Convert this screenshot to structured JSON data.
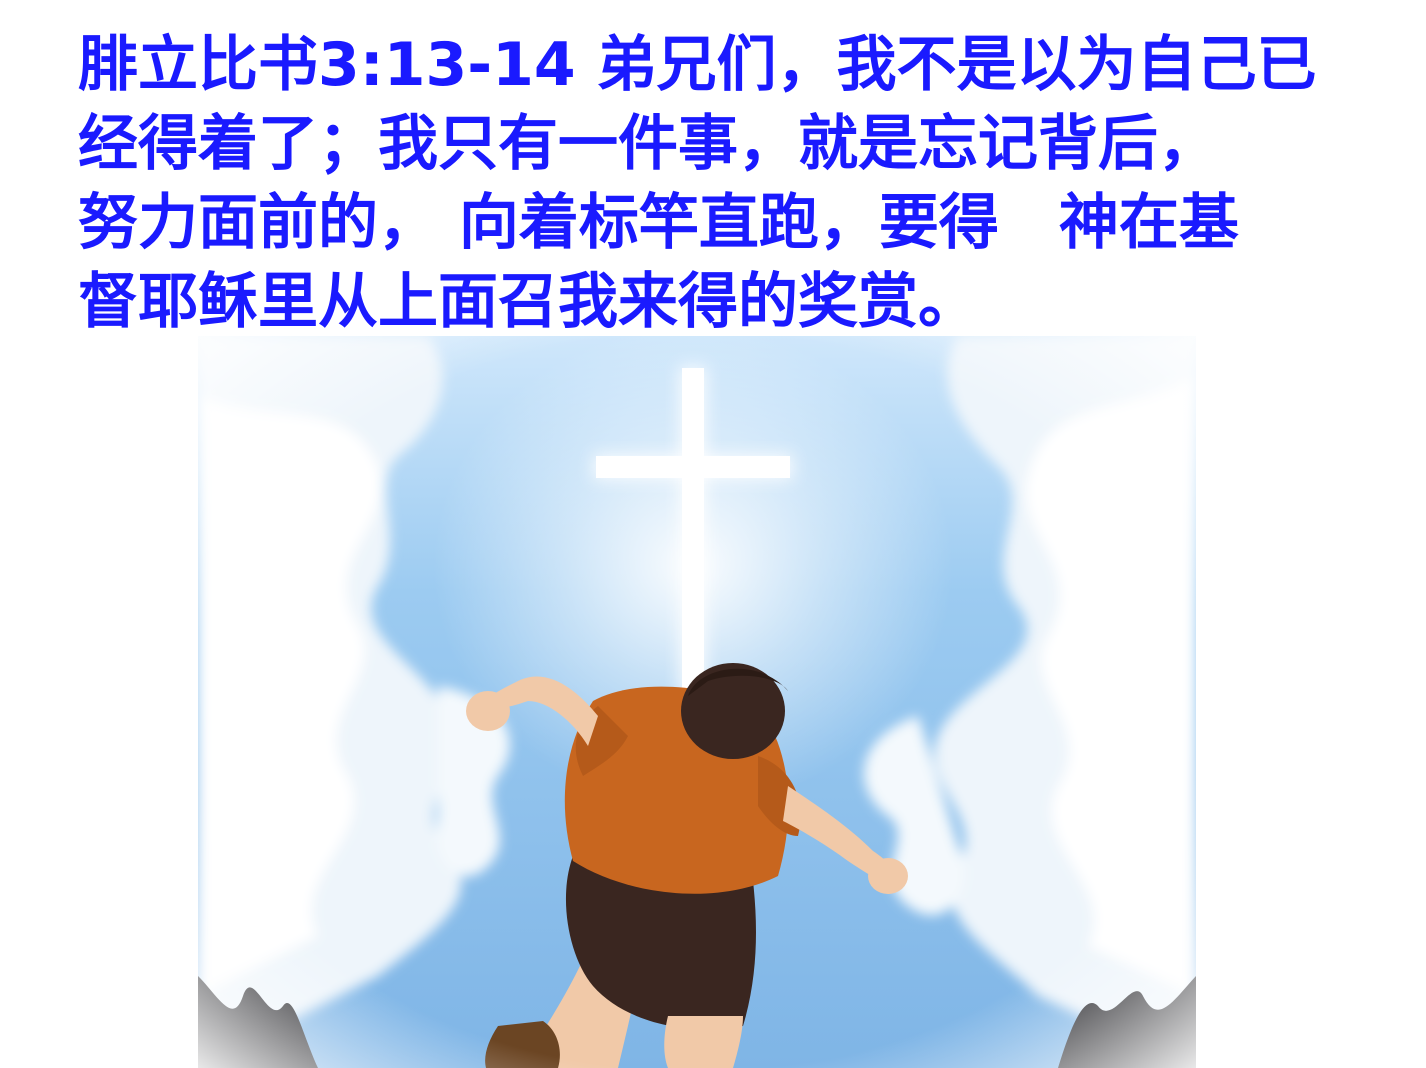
{
  "verse": {
    "lines": [
      "腓立比书3:13-14 弟兄们，我不是以为自己已",
      "经得着了；我只有一件事，就是忘记背后，",
      "努力面前的， 向着标竿直跑，要得　神在基",
      "督耶稣里从上面召我来得的奖赏。"
    ]
  },
  "colors": {
    "verse_text": "#1a1aff",
    "sky": "#8dc3ef",
    "shirt": "#c8661f",
    "shorts": "#3a2620",
    "cross": "#ffffff"
  }
}
